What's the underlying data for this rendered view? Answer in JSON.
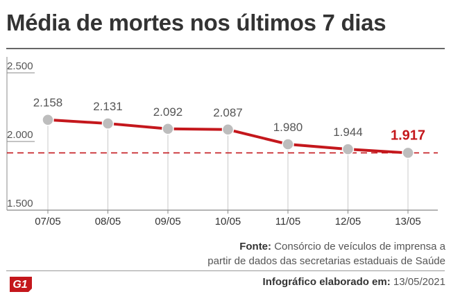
{
  "header": {
    "title": "Média de mortes nos últimos 7 dias"
  },
  "footer": {
    "source_label": "Fonte:",
    "source_line1": "Consórcio de veículos de imprensa a",
    "source_line2": "partir de dados das secretarias estaduais de Saúde",
    "credit_label": "Infográfico elaborado em:",
    "credit_date": "13/05/2021",
    "logo_text": "G1"
  },
  "colors": {
    "line": "#c4171c",
    "dot": "#bdbdbd",
    "highlight": "#c4171c",
    "text": "#555555"
  },
  "chart_data": {
    "type": "line",
    "title": "Média de mortes nos últimos 7 dias",
    "categories": [
      "07/05",
      "08/05",
      "09/05",
      "10/05",
      "11/05",
      "12/05",
      "13/05"
    ],
    "values": [
      2158,
      2131,
      2092,
      2087,
      1980,
      1944,
      1917
    ],
    "data_labels": [
      "2.158",
      "2.131",
      "2.092",
      "2.087",
      "1.980",
      "1.944",
      "1.917"
    ],
    "y_ticks": [
      1500,
      2000,
      2500
    ],
    "y_tick_labels": [
      "1.500",
      "2.000",
      "2.500"
    ],
    "ylim": [
      1500,
      2500
    ],
    "reference_line": 1917,
    "highlight_index": 6,
    "grid": false
  }
}
